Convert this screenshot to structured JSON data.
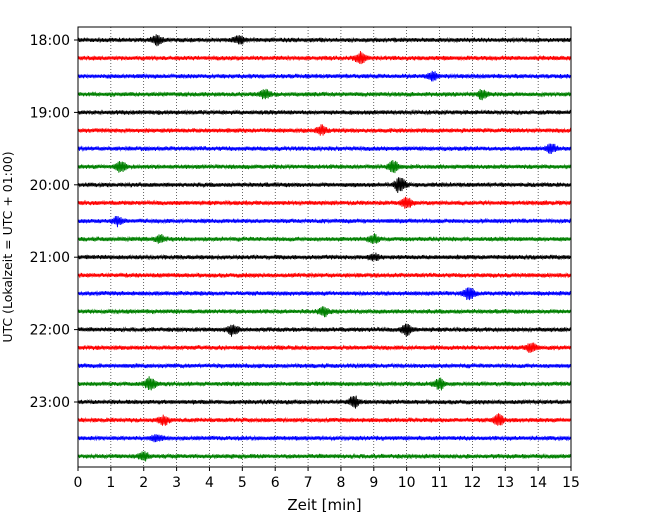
{
  "chart_data": {
    "type": "line",
    "xlabel": "Zeit  [min]",
    "ylabel": "UTC (Lokalzeit = UTC + 01:00)",
    "xlim": [
      0,
      15
    ],
    "x_ticks": [
      0,
      1,
      2,
      3,
      4,
      5,
      6,
      7,
      8,
      9,
      10,
      11,
      12,
      13,
      14,
      15
    ],
    "hour_labels": [
      "18:00",
      "19:00",
      "20:00",
      "21:00",
      "22:00",
      "23:00"
    ],
    "grid": "vertical dotted at each minute",
    "trace_interval_min": 15,
    "trace_start": "18:00",
    "trace_count": 24,
    "colors": [
      "#000000",
      "#ff0000",
      "#0000ff",
      "#008000"
    ],
    "events": [
      {
        "trace": 0,
        "x": 2.4,
        "amp": 4
      },
      {
        "trace": 0,
        "x": 4.9,
        "amp": 4
      },
      {
        "trace": 1,
        "x": 8.6,
        "amp": 5
      },
      {
        "trace": 2,
        "x": 10.8,
        "amp": 4
      },
      {
        "trace": 3,
        "x": 5.7,
        "amp": 4
      },
      {
        "trace": 3,
        "x": 12.3,
        "amp": 4
      },
      {
        "trace": 5,
        "x": 7.4,
        "amp": 4
      },
      {
        "trace": 6,
        "x": 14.4,
        "amp": 4
      },
      {
        "trace": 7,
        "x": 1.3,
        "amp": 5
      },
      {
        "trace": 7,
        "x": 9.6,
        "amp": 5
      },
      {
        "trace": 8,
        "x": 9.8,
        "amp": 8
      },
      {
        "trace": 9,
        "x": 10.0,
        "amp": 5
      },
      {
        "trace": 10,
        "x": 1.2,
        "amp": 4
      },
      {
        "trace": 11,
        "x": 2.5,
        "amp": 4
      },
      {
        "trace": 11,
        "x": 9.0,
        "amp": 4
      },
      {
        "trace": 12,
        "x": 9.0,
        "amp": 3
      },
      {
        "trace": 14,
        "x": 11.9,
        "amp": 6
      },
      {
        "trace": 15,
        "x": 7.5,
        "amp": 4
      },
      {
        "trace": 16,
        "x": 4.7,
        "amp": 5
      },
      {
        "trace": 16,
        "x": 10.0,
        "amp": 5
      },
      {
        "trace": 17,
        "x": 13.8,
        "amp": 5
      },
      {
        "trace": 19,
        "x": 2.2,
        "amp": 6
      },
      {
        "trace": 19,
        "x": 11.0,
        "amp": 5
      },
      {
        "trace": 20,
        "x": 8.4,
        "amp": 5
      },
      {
        "trace": 21,
        "x": 12.8,
        "amp": 5
      },
      {
        "trace": 21,
        "x": 2.6,
        "amp": 4
      },
      {
        "trace": 22,
        "x": 2.4,
        "amp": 3
      },
      {
        "trace": 23,
        "x": 2.0,
        "amp": 4
      }
    ]
  }
}
